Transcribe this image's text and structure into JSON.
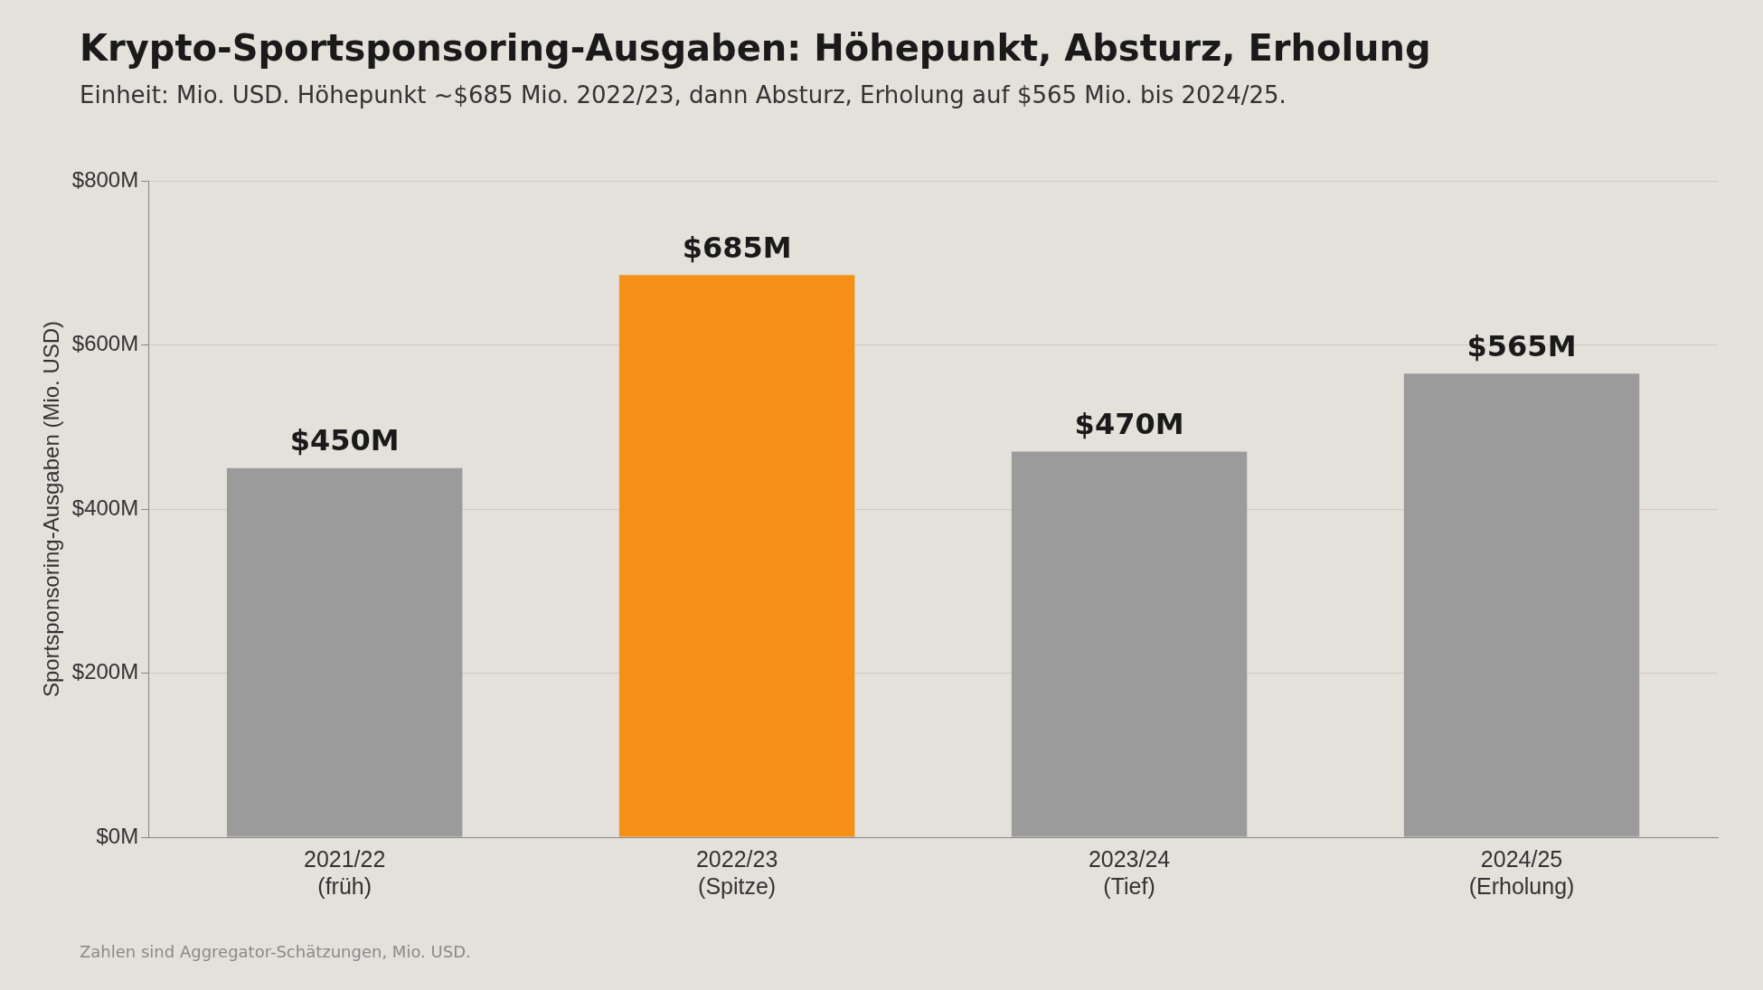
{
  "chart_data": {
    "type": "bar",
    "title": "Krypto-Sportsponsoring-Ausgaben: Höhepunkt, Absturz, Erholung",
    "subtitle": "Einheit: Mio. USD. Höhepunkt ~$685 Mio. 2022/23, dann Absturz, Erholung auf $565 Mio. bis 2024/25.",
    "ylabel": "Sportsponsoring-Ausgaben (Mio. USD)",
    "categories": [
      "2021/22\n(früh)",
      "2022/23\n(Spitze)",
      "2023/24\n(Tief)",
      "2024/25\n(Erholung)"
    ],
    "values": [
      450,
      685,
      470,
      565
    ],
    "colors": [
      "#9b9b9b",
      "#f58f18",
      "#9b9b9b",
      "#9b9b9b"
    ],
    "value_labels": [
      "$450M",
      "$685M",
      "$470M",
      "$565M"
    ],
    "ylim": [
      0,
      800
    ],
    "yticks": [
      {
        "value": 0,
        "label": "$0M"
      },
      {
        "value": 200,
        "label": "$200M"
      },
      {
        "value": 400,
        "label": "$400M"
      },
      {
        "value": 600,
        "label": "$600M"
      },
      {
        "value": 800,
        "label": "$800M"
      }
    ],
    "grid": "y",
    "legend": false,
    "annotations": [
      "Zahlen sind Aggregator-Schätzungen, Mio. USD."
    ]
  }
}
